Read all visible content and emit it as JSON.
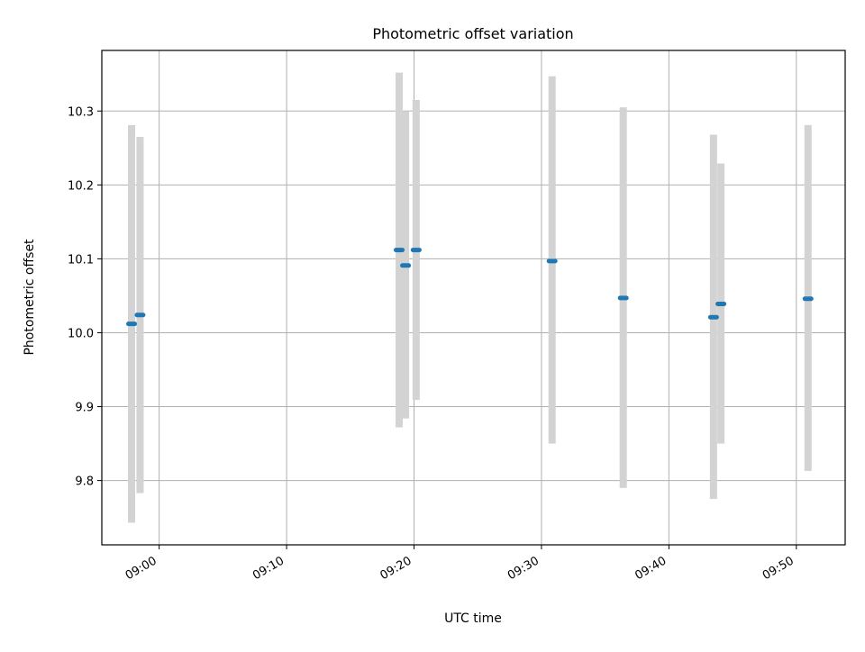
{
  "chart_data": {
    "type": "scatter",
    "title": "Photometric offset variation",
    "xlabel": "UTC time",
    "ylabel": "Photometric offset",
    "x_ticks": [
      "09:00",
      "09:10",
      "09:20",
      "09:30",
      "09:40",
      "09:50"
    ],
    "y_ticks": [
      "9.8",
      "9.9",
      "10.0",
      "10.1",
      "10.2",
      "10.3"
    ],
    "xlim": [
      "08:55:30",
      "09:53:50"
    ],
    "ylim": [
      9.713,
      10.382
    ],
    "grid": true,
    "series": [
      {
        "marker": "short horizontal dash",
        "color": "#1f77b4",
        "errorbar_color": "#d3d3d3",
        "points": [
          {
            "x": "08:57:50",
            "y": 10.012,
            "ylow": 9.743,
            "yhigh": 10.281
          },
          {
            "x": "08:58:30",
            "y": 10.024,
            "ylow": 9.783,
            "yhigh": 10.265
          },
          {
            "x": "09:18:50",
            "y": 10.112,
            "ylow": 9.872,
            "yhigh": 10.352
          },
          {
            "x": "09:19:20",
            "y": 10.091,
            "ylow": 9.884,
            "yhigh": 10.3
          },
          {
            "x": "09:20:10",
            "y": 10.112,
            "ylow": 9.909,
            "yhigh": 10.315
          },
          {
            "x": "09:30:50",
            "y": 10.097,
            "ylow": 9.85,
            "yhigh": 10.347
          },
          {
            "x": "09:36:25",
            "y": 10.047,
            "ylow": 9.79,
            "yhigh": 10.305
          },
          {
            "x": "09:43:30",
            "y": 10.021,
            "ylow": 9.775,
            "yhigh": 10.268
          },
          {
            "x": "09:44:05",
            "y": 10.039,
            "ylow": 9.85,
            "yhigh": 10.229
          },
          {
            "x": "09:50:55",
            "y": 10.046,
            "ylow": 9.813,
            "yhigh": 10.281
          }
        ]
      }
    ]
  }
}
